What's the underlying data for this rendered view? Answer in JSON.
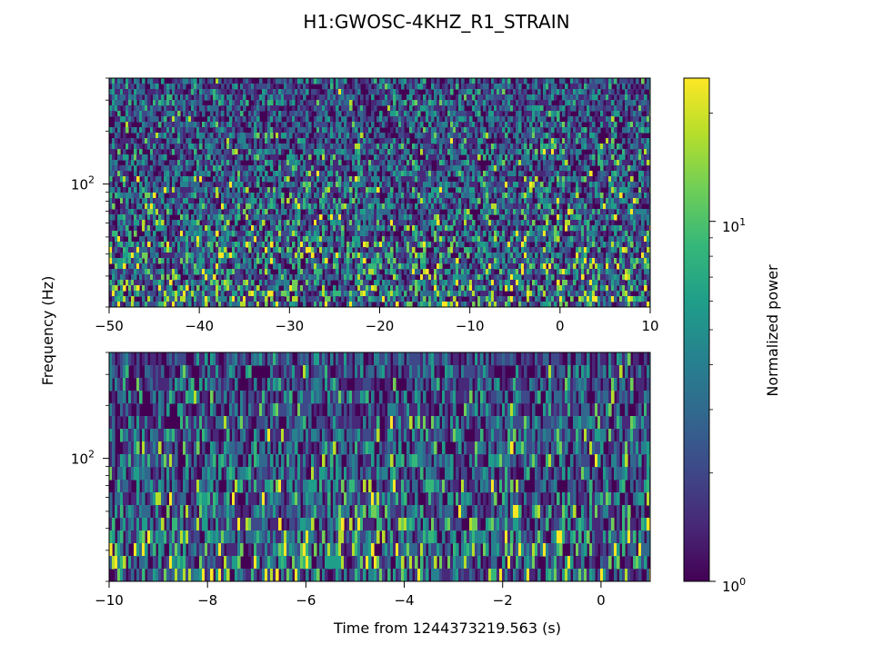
{
  "title": "H1:GWOSC-4KHZ_R1_STRAIN",
  "chart_data": [
    {
      "type": "heatmap",
      "panel": "top",
      "xlim": [
        -50,
        10
      ],
      "ylim": [
        20,
        400
      ],
      "yscale": "log",
      "x_ticks": [
        -50,
        -40,
        -30,
        -20,
        -10,
        0,
        10
      ],
      "x_tick_labels": [
        "−50",
        "−40",
        "−30",
        "−20",
        "−10",
        "0",
        "10"
      ],
      "y_tick_values": [
        100
      ],
      "y_tick_labels": [
        "10",
        "2"
      ],
      "texture": "fine speckle noise, power concentrated at low frequencies"
    },
    {
      "type": "heatmap",
      "panel": "bottom",
      "xlim": [
        -10,
        1
      ],
      "ylim": [
        20,
        400
      ],
      "yscale": "log",
      "x_ticks": [
        -10,
        -8,
        -6,
        -4,
        -2,
        0
      ],
      "x_tick_labels": [
        "−10",
        "−8",
        "−6",
        "−4",
        "−2",
        "0"
      ],
      "y_tick_values": [
        100
      ],
      "y_tick_labels": [
        "10",
        "2"
      ],
      "texture": "vertical streaks, brighter blobs at low frequencies"
    }
  ],
  "ylabel": "Frequency (Hz)",
  "xlabel": "Time from 1244373219.563 (s)",
  "colorbar": {
    "label": "Normalized power",
    "scale": "log",
    "range": [
      1,
      25
    ],
    "colormap": "viridis",
    "tick_labels": [
      {
        "base": "10",
        "exp": "0"
      },
      {
        "base": "10",
        "exp": "1"
      }
    ]
  },
  "colors": {
    "viridis": [
      "#440154",
      "#482878",
      "#3e4989",
      "#31688e",
      "#26828e",
      "#1f9e89",
      "#35b779",
      "#6ece58",
      "#b5de2b",
      "#fde725"
    ]
  }
}
